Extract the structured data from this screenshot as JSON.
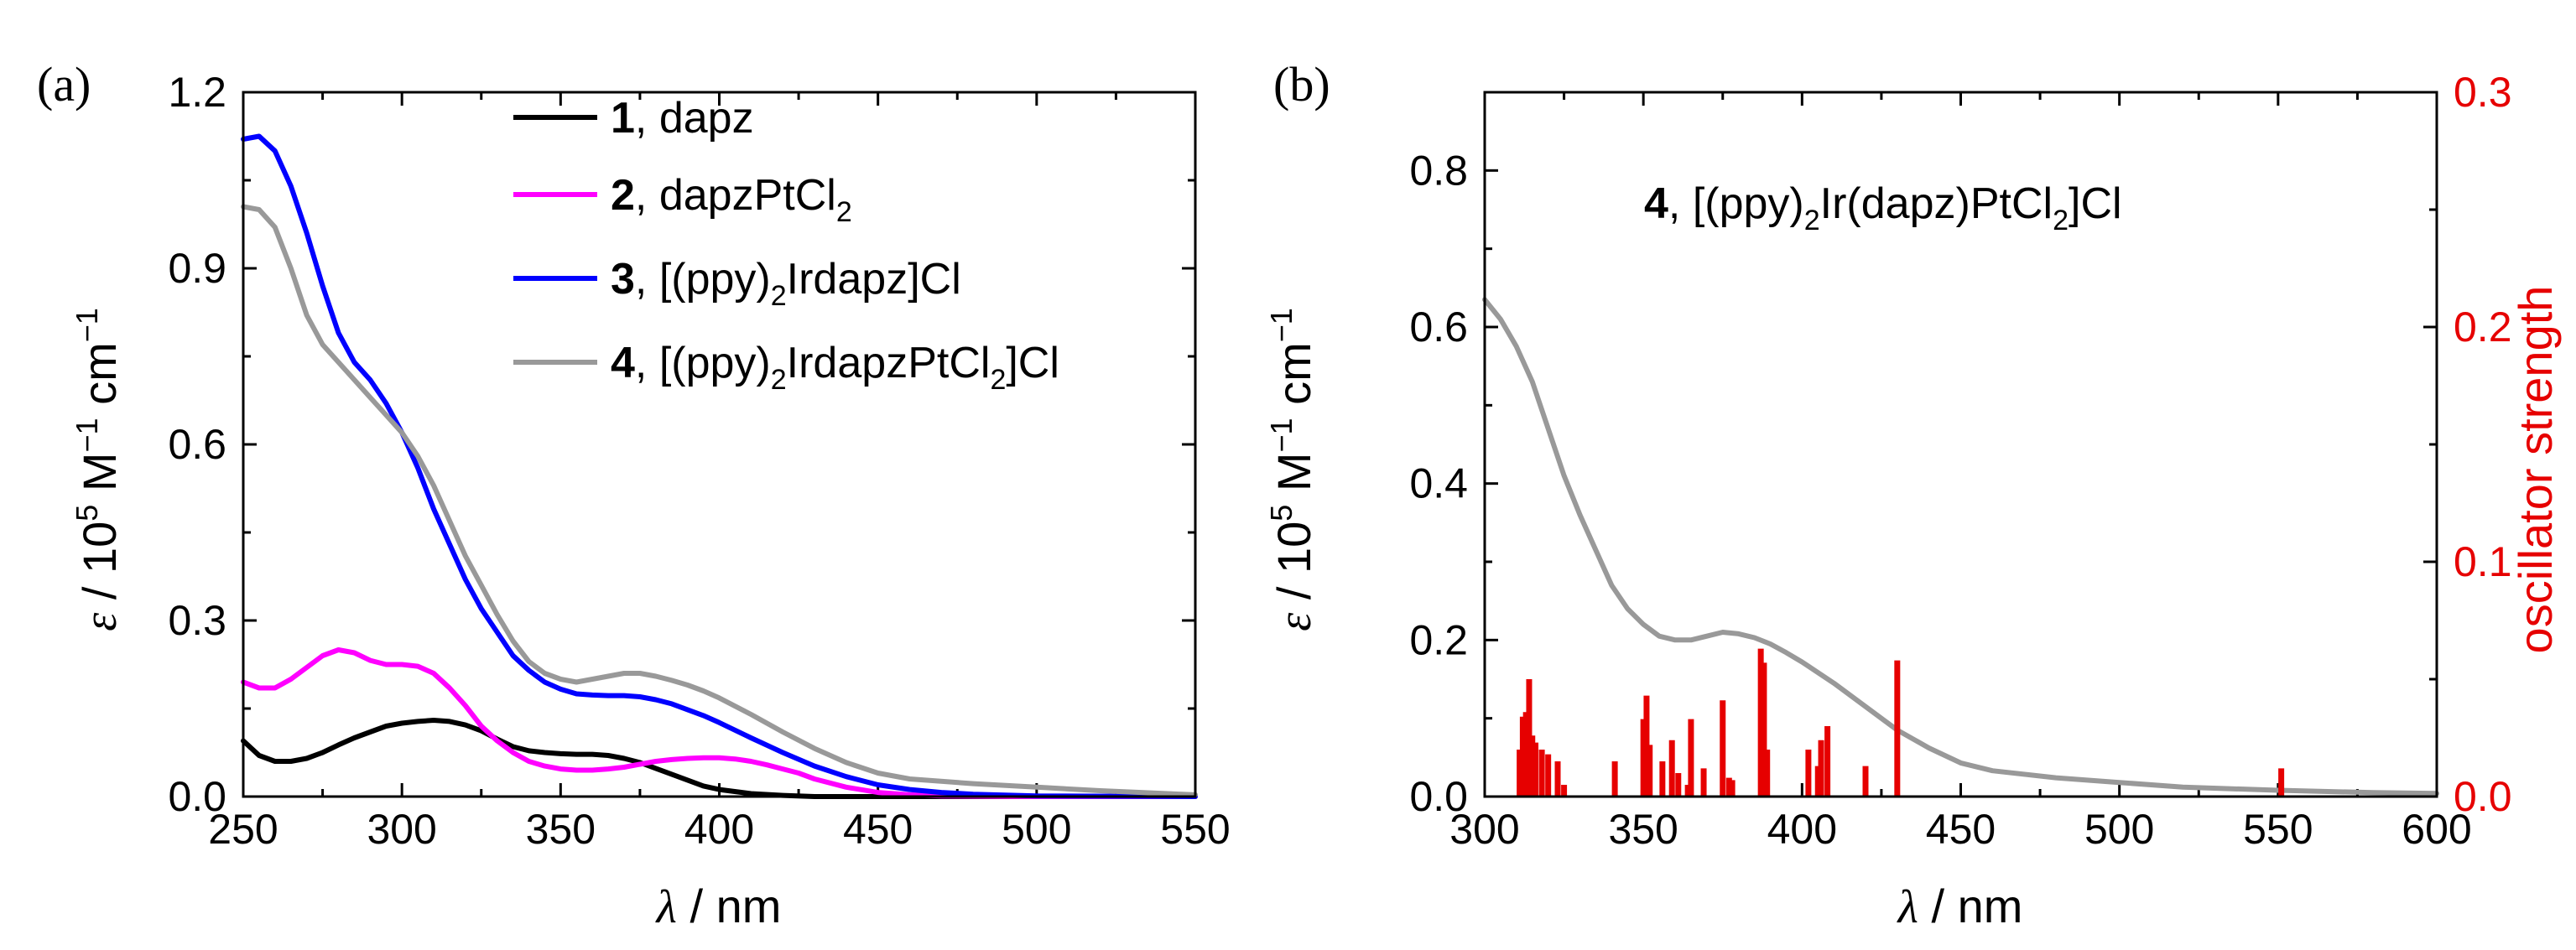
{
  "chart_data": [
    {
      "panel": "(a)",
      "type": "line",
      "xlabel": "λ / nm",
      "ylabel": "ε / 10^5 M^-1 cm^-1",
      "xlim": [
        250,
        550
      ],
      "ylim": [
        0,
        1.2
      ],
      "xticks": [
        250,
        300,
        350,
        400,
        450,
        500,
        550
      ],
      "xtick_labels": [
        "250",
        "300",
        "350",
        "400",
        "450",
        "500",
        "550"
      ],
      "yticks": [
        0,
        0.3,
        0.6,
        0.9,
        1.2
      ],
      "ytick_labels": [
        "0.0",
        "0.3",
        "0.6",
        "0.9",
        "1.2"
      ],
      "legend_position": "top-right",
      "series": [
        {
          "name": "1, dapz",
          "number": "1",
          "label": ", dapz",
          "color": "#000000",
          "x": [
            250,
            255,
            260,
            265,
            270,
            275,
            280,
            285,
            290,
            295,
            300,
            305,
            310,
            315,
            320,
            325,
            330,
            335,
            340,
            345,
            350,
            355,
            360,
            365,
            370,
            375,
            380,
            385,
            390,
            395,
            400,
            410,
            420,
            430,
            450,
            500,
            550
          ],
          "y": [
            0.095,
            0.07,
            0.06,
            0.06,
            0.065,
            0.075,
            0.088,
            0.1,
            0.11,
            0.12,
            0.125,
            0.128,
            0.13,
            0.128,
            0.122,
            0.112,
            0.098,
            0.085,
            0.078,
            0.075,
            0.073,
            0.072,
            0.072,
            0.07,
            0.065,
            0.058,
            0.048,
            0.038,
            0.028,
            0.018,
            0.012,
            0.005,
            0.002,
            0,
            0,
            0,
            0
          ]
        },
        {
          "name": "2, dapzPtCl2",
          "number": "2",
          "label": ", dapzPtCl",
          "label_sub": "2",
          "color": "#ff00ff",
          "x": [
            250,
            255,
            260,
            265,
            270,
            275,
            280,
            285,
            290,
            295,
            300,
            305,
            310,
            315,
            320,
            325,
            330,
            335,
            340,
            345,
            350,
            355,
            360,
            365,
            370,
            375,
            380,
            385,
            390,
            395,
            400,
            405,
            410,
            415,
            420,
            425,
            430,
            440,
            450,
            460,
            470,
            500,
            550
          ],
          "y": [
            0.195,
            0.185,
            0.185,
            0.2,
            0.22,
            0.24,
            0.25,
            0.245,
            0.232,
            0.225,
            0.225,
            0.222,
            0.21,
            0.185,
            0.155,
            0.12,
            0.095,
            0.075,
            0.06,
            0.052,
            0.047,
            0.045,
            0.045,
            0.047,
            0.05,
            0.055,
            0.06,
            0.063,
            0.065,
            0.066,
            0.066,
            0.064,
            0.06,
            0.054,
            0.047,
            0.04,
            0.03,
            0.016,
            0.007,
            0.003,
            0.001,
            0,
            0
          ]
        },
        {
          "name": "3, [(ppy)2Irdapz]Cl",
          "number": "3",
          "label": ", [(ppy)",
          "label_sub": "2",
          "label_tail": "Irdapz]Cl",
          "color": "#0000ff",
          "x": [
            250,
            255,
            260,
            265,
            270,
            275,
            280,
            285,
            290,
            295,
            300,
            305,
            310,
            315,
            320,
            325,
            330,
            335,
            340,
            345,
            350,
            355,
            360,
            365,
            370,
            375,
            380,
            385,
            390,
            395,
            400,
            410,
            420,
            430,
            440,
            450,
            460,
            470,
            480,
            500,
            550
          ],
          "y": [
            1.12,
            1.125,
            1.1,
            1.04,
            0.96,
            0.87,
            0.79,
            0.74,
            0.71,
            0.67,
            0.62,
            0.56,
            0.49,
            0.43,
            0.37,
            0.32,
            0.28,
            0.24,
            0.215,
            0.195,
            0.183,
            0.175,
            0.173,
            0.172,
            0.172,
            0.17,
            0.165,
            0.158,
            0.148,
            0.138,
            0.126,
            0.1,
            0.075,
            0.052,
            0.034,
            0.02,
            0.012,
            0.007,
            0.004,
            0.001,
            0
          ]
        },
        {
          "name": "4, [(ppy)2IrdapzPtCl2]Cl",
          "number": "4",
          "label": ", [(ppy)",
          "label_sub": "2",
          "label_mid": "IrdapzPtCl",
          "label_sub2": "2",
          "label_tail": "]Cl",
          "color": "#999999",
          "x": [
            250,
            255,
            260,
            265,
            270,
            275,
            280,
            285,
            290,
            295,
            300,
            305,
            310,
            315,
            320,
            325,
            330,
            335,
            340,
            345,
            350,
            355,
            360,
            365,
            370,
            375,
            380,
            385,
            390,
            395,
            400,
            410,
            420,
            430,
            440,
            450,
            460,
            480,
            500,
            520,
            550
          ],
          "y": [
            1.005,
            1.0,
            0.97,
            0.9,
            0.82,
            0.77,
            0.74,
            0.71,
            0.68,
            0.65,
            0.62,
            0.58,
            0.53,
            0.47,
            0.41,
            0.36,
            0.31,
            0.265,
            0.23,
            0.21,
            0.2,
            0.195,
            0.2,
            0.205,
            0.21,
            0.21,
            0.205,
            0.198,
            0.19,
            0.18,
            0.168,
            0.14,
            0.11,
            0.082,
            0.058,
            0.04,
            0.03,
            0.022,
            0.016,
            0.01,
            0.003
          ]
        }
      ]
    },
    {
      "panel": "(b)",
      "type": "line+bar",
      "xlabel": "λ / nm",
      "ylabel": "ε / 10^5 M^-1 cm^-1",
      "y2label": "oscillator strength",
      "xlim": [
        300,
        600
      ],
      "ylim": [
        0,
        0.9
      ],
      "y2lim": [
        0,
        0.3
      ],
      "xticks": [
        300,
        350,
        400,
        450,
        500,
        550,
        600
      ],
      "xtick_labels": [
        "300",
        "350",
        "400",
        "450",
        "500",
        "550",
        "600"
      ],
      "yticks": [
        0,
        0.2,
        0.4,
        0.6,
        0.8
      ],
      "ytick_labels": [
        "0.0",
        "0.2",
        "0.4",
        "0.6",
        "0.8"
      ],
      "y2ticks": [
        0,
        0.1,
        0.2,
        0.3
      ],
      "y2tick_labels": [
        "0.0",
        "0.1",
        "0.2",
        "0.3"
      ],
      "annotation": {
        "number": "4",
        "text": ", [(ppy)",
        "sub": "2",
        "mid": "Ir(dapz)PtCl",
        "sub2": "2",
        "tail": "]Cl"
      },
      "series": [
        {
          "name": "4 spectrum",
          "color": "#999999",
          "x": [
            300,
            305,
            310,
            315,
            320,
            325,
            330,
            335,
            340,
            345,
            350,
            355,
            360,
            365,
            370,
            375,
            380,
            385,
            390,
            395,
            400,
            410,
            420,
            430,
            440,
            450,
            460,
            480,
            500,
            520,
            550,
            580,
            600
          ],
          "y": [
            0.635,
            0.61,
            0.575,
            0.53,
            0.47,
            0.41,
            0.36,
            0.315,
            0.27,
            0.24,
            0.22,
            0.205,
            0.2,
            0.2,
            0.205,
            0.21,
            0.208,
            0.203,
            0.195,
            0.184,
            0.172,
            0.145,
            0.115,
            0.085,
            0.062,
            0.043,
            0.033,
            0.024,
            0.018,
            0.012,
            0.008,
            0.005,
            0.004
          ]
        }
      ],
      "sticks": {
        "name": "calculated transitions",
        "color": "#e60000",
        "x": [
          311,
          312,
          313,
          314,
          315,
          316,
          318,
          320,
          323,
          325,
          341,
          350,
          351,
          352,
          356,
          359,
          361,
          364,
          365,
          369,
          375,
          377,
          378,
          387,
          388,
          389,
          402,
          405,
          406,
          408,
          420,
          430,
          551
        ],
        "f": [
          0.02,
          0.034,
          0.036,
          0.05,
          0.026,
          0.023,
          0.02,
          0.018,
          0.015,
          0.005,
          0.015,
          0.033,
          0.043,
          0.022,
          0.015,
          0.024,
          0.01,
          0.005,
          0.033,
          0.012,
          0.041,
          0.008,
          0.007,
          0.063,
          0.057,
          0.02,
          0.02,
          0.013,
          0.024,
          0.03,
          0.013,
          0.058,
          0.012
        ]
      }
    }
  ]
}
